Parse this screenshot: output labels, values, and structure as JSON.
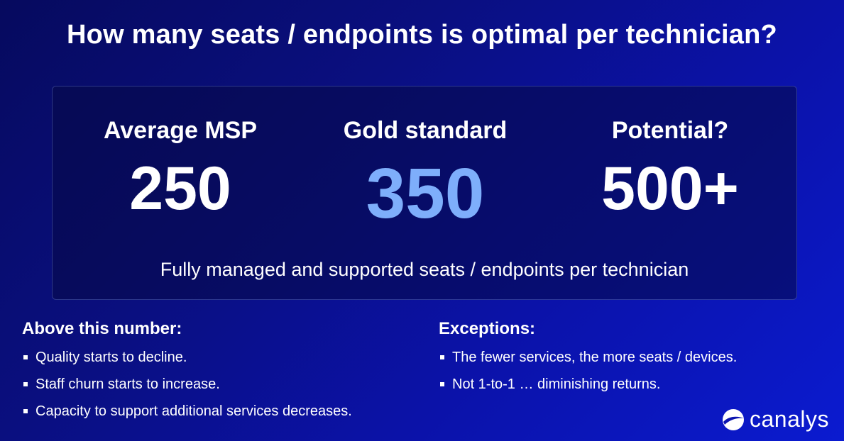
{
  "title": "How many seats / endpoints is optimal per technician?",
  "stats": [
    {
      "label": "Average MSP",
      "value": "250"
    },
    {
      "label": "Gold standard",
      "value": "350"
    },
    {
      "label": "Potential?",
      "value": "500+"
    }
  ],
  "panel_caption": "Fully managed and supported seats / endpoints per technician",
  "above": {
    "heading": "Above this number:",
    "items": [
      "Quality starts to decline.",
      "Staff churn starts to increase.",
      "Capacity to support additional services decreases."
    ]
  },
  "exceptions": {
    "heading": "Exceptions:",
    "items": [
      "The fewer services, the more seats / devices.",
      "Not 1-to-1 … diminishing returns."
    ]
  },
  "brand": {
    "name": "canalys",
    "logo_icon": "canalys-swoosh-icon"
  },
  "colors": {
    "highlight": "#7eaefb",
    "background": "#0a0f80"
  }
}
